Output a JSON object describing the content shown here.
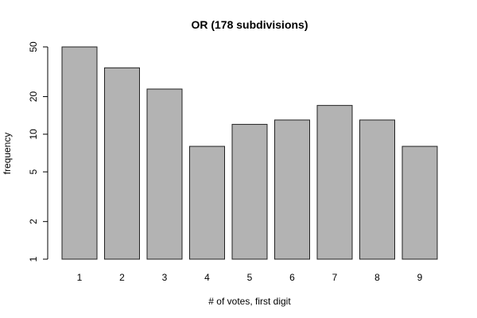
{
  "chart_data": {
    "type": "bar",
    "title": "OR (178 subdivisions)",
    "xlabel": "# of votes, first digit",
    "ylabel": "frequency",
    "categories": [
      "1",
      "2",
      "3",
      "4",
      "5",
      "6",
      "7",
      "8",
      "9"
    ],
    "values": [
      50,
      34,
      23,
      8,
      12,
      13,
      17,
      13,
      8
    ],
    "y_scale": "log",
    "ylim": [
      1,
      50
    ],
    "y_ticks": [
      1,
      2,
      5,
      10,
      20,
      50
    ],
    "y_tick_labels": [
      "1",
      "2",
      "5",
      "10",
      "20",
      "50"
    ],
    "bar_color": "#b3b3b3",
    "bar_outline_color": "#222222",
    "grid": false,
    "legend": "none"
  }
}
